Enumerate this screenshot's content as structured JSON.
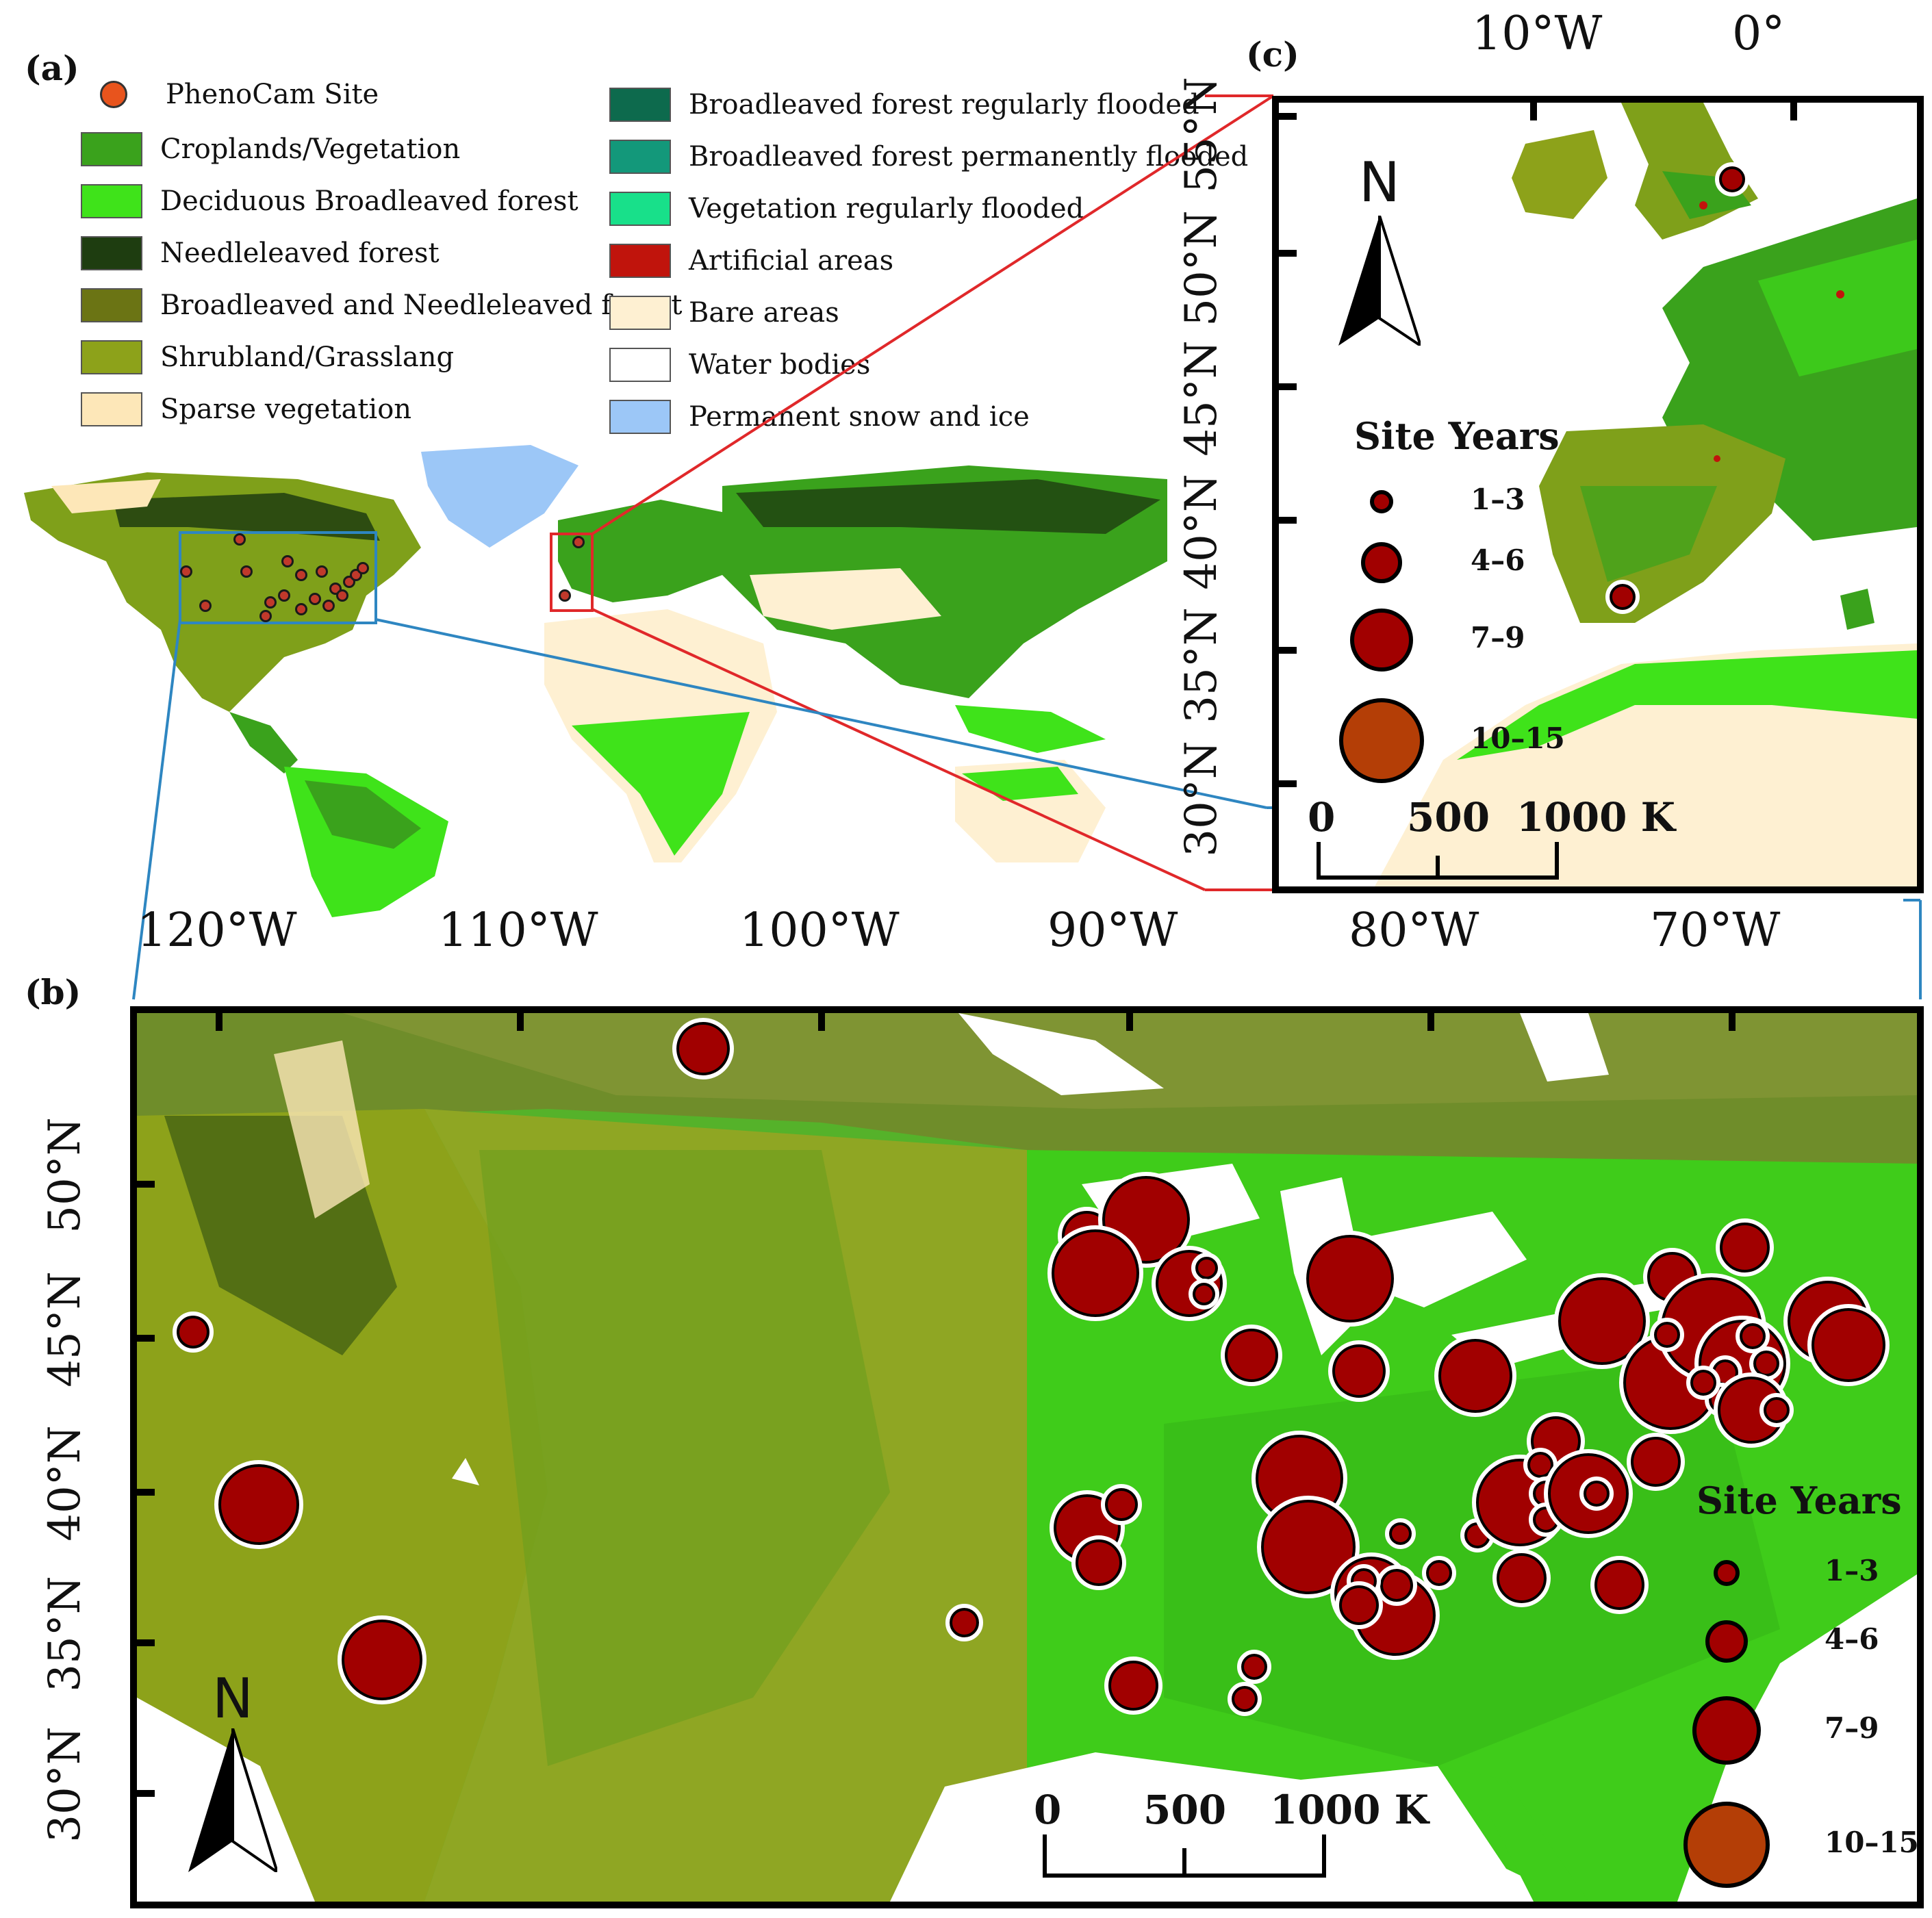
{
  "panel_a": {
    "label": "(a)",
    "legend_left": [
      {
        "label": "PhenoCam Site",
        "color": "#e8541d",
        "type": "dot"
      },
      {
        "label": "Croplands/Vegetation",
        "color": "#3aa21c"
      },
      {
        "label": "Deciduous Broadleaved forest",
        "color": "#3fe31a"
      },
      {
        "label": "Needleleaved forest",
        "color": "#1e3d10"
      },
      {
        "label": "Broadleaved and Needleleaved forest",
        "color": "#6b7414"
      },
      {
        "label": "Shrubland/Grasslang",
        "color": "#8da21a"
      },
      {
        "label": "Sparse vegetation",
        "color": "#fde7b8"
      }
    ],
    "legend_right": [
      {
        "label": "Broadleaved forest regularly flooded",
        "color": "#0d6a4d"
      },
      {
        "label": "Broadleaved forest permanently flooded",
        "color": "#13987a"
      },
      {
        "label": "Vegetation regularly flooded",
        "color": "#18e08a"
      },
      {
        "label": "Artificial areas",
        "color": "#c0140c"
      },
      {
        "label": "Bare areas",
        "color": "#fef0d2"
      },
      {
        "label": "Water bodies",
        "color": "#ffffff"
      },
      {
        "label": "Permanent snow and ice",
        "color": "#9cc7f7"
      }
    ]
  },
  "panel_b": {
    "label": "(b)",
    "x_ticks": [
      "120°W",
      "110°W",
      "100°W",
      "90°W",
      "80°W",
      "70°W"
    ],
    "y_ticks": [
      "50°N",
      "45°N",
      "40°N",
      "35°N",
      "30°N"
    ],
    "north": "N",
    "scale": [
      "0",
      "500",
      "1000 K"
    ],
    "legend_title": "Site Years",
    "legend_items": [
      "1–3",
      "4–6",
      "7–9",
      "10–15"
    ]
  },
  "panel_c": {
    "label": "(c)",
    "x_ticks": [
      "10°W",
      "0°"
    ],
    "y_ticks": [
      "55°N",
      "50°N",
      "45°N",
      "40°N",
      "35°N",
      "30°N"
    ],
    "north": "N",
    "scale": [
      "0",
      "500",
      "1000 K"
    ],
    "legend_title": "Site Years",
    "legend_items": [
      "1–3",
      "4–6",
      "7–9",
      "10–15"
    ]
  },
  "colors": {
    "site_fill": "#a10000",
    "site_large_fill": "#b43e06",
    "inset_link_red": "#e0282a",
    "inset_link_blue": "#2e86c1"
  }
}
